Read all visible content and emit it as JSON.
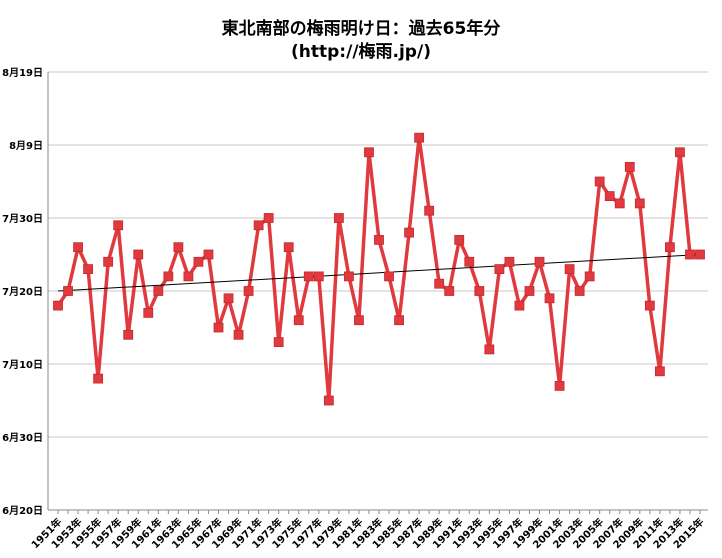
{
  "chart_data": {
    "type": "line",
    "title": "東北南部の梅雨明け日：過去65年分",
    "subtitle": "(http://梅雨.jp/)",
    "xlabel": "",
    "ylabel": "",
    "x": [
      "1951年",
      "1952年",
      "1953年",
      "1954年",
      "1955年",
      "1956年",
      "1957年",
      "1958年",
      "1959年",
      "1960年",
      "1961年",
      "1962年",
      "1963年",
      "1964年",
      "1965年",
      "1966年",
      "1967年",
      "1968年",
      "1969年",
      "1970年",
      "1971年",
      "1972年",
      "1973年",
      "1974年",
      "1975年",
      "1976年",
      "1977年",
      "1978年",
      "1979年",
      "1980年",
      "1981年",
      "1982年",
      "1983年",
      "1984年",
      "1985年",
      "1986年",
      "1987年",
      "1988年",
      "1989年",
      "1990年",
      "1991年",
      "1992年",
      "1993年",
      "1994年",
      "1995年",
      "1996年",
      "1997年",
      "1998年",
      "1999年",
      "2000年",
      "2001年",
      "2002年",
      "2003年",
      "2004年",
      "2005年",
      "2006年",
      "2007年",
      "2008年",
      "2009年",
      "2010年",
      "2011年",
      "2012年",
      "2013年",
      "2014年",
      "2015年"
    ],
    "x_tick_labels": [
      "1951年",
      "1953年",
      "1955年",
      "1957年",
      "1959年",
      "1961年",
      "1963年",
      "1965年",
      "1967年",
      "1969年",
      "1971年",
      "1973年",
      "1975年",
      "1977年",
      "1979年",
      "1981年",
      "1983年",
      "1985年",
      "1987年",
      "1989年",
      "1991年",
      "1993年",
      "1995年",
      "1997年",
      "1999年",
      "2001年",
      "2003年",
      "2005年",
      "2007年",
      "2009年",
      "2011年",
      "2013年",
      "2015年"
    ],
    "y_tick_labels": [
      "6月20日",
      "6月30日",
      "7月10日",
      "7月20日",
      "7月30日",
      "8月9日",
      "8月19日"
    ],
    "series": [
      {
        "values": [
          "7月18日",
          "7月20日",
          "7月26日",
          "7月23日",
          "7月8日",
          "7月24日",
          "7月29日",
          "7月14日",
          "7月25日",
          "7月17日",
          "7月20日",
          "7月22日",
          "7月26日",
          "7月22日",
          "7月24日",
          "7月25日",
          "7月15日",
          "7月19日",
          "7月14日",
          "7月20日",
          "7月29日",
          "7月30日",
          "7月13日",
          "7月26日",
          "7月16日",
          "7月22日",
          "7月22日",
          "7月5日",
          "7月30日",
          "7月22日",
          "7月16日",
          "8月8日",
          "7月27日",
          "7月22日",
          "7月16日",
          "7月28日",
          "8月10日",
          "7月31日",
          "7月21日",
          "7月20日",
          "7月27日",
          "7月24日",
          "7月20日",
          "7月12日",
          "7月23日",
          "7月24日",
          "7月18日",
          "7月20日",
          "7月24日",
          "7月19日",
          "7月7日",
          "7月23日",
          "7月20日",
          "7月22日",
          "8月4日",
          "8月2日",
          "8月1日",
          "8月6日",
          "8月1日",
          "7月18日",
          "7月9日",
          "7月26日",
          "8月8日",
          "7月25日",
          "7月25日"
        ]
      }
    ],
    "trendline": {
      "type": "linear",
      "start": "7月20日",
      "end": "7月25日"
    },
    "ylim": [
      "6月20日",
      "8月19日"
    ],
    "grid": true,
    "legend": "none",
    "colors": {
      "series": "#e0393e",
      "marker": "#e0393e",
      "trend": "#000000",
      "grid": "#c8c8c8",
      "axis": "#8a8a8a"
    }
  }
}
